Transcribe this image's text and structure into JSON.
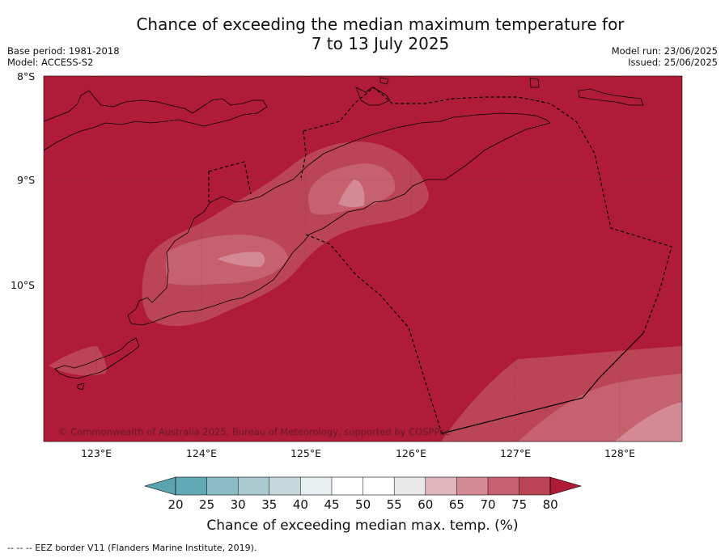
{
  "title_line1": "Chance of exceeding the median maximum temperature for",
  "title_line2": "7 to 13 July 2025",
  "base_period": "Base period: 1981-2018",
  "model": "Model: ACCESS-S2",
  "model_run": "Model run: 23/06/2025",
  "issued": "Issued: 25/06/2025",
  "copyright": "© Commonwealth of Australia 2025, Bureau of Meteorology, supported by COSPPac",
  "lat_labels": [
    "8°S",
    "9°S",
    "10°S"
  ],
  "lon_labels": [
    "123°E",
    "124°E",
    "125°E",
    "126°E",
    "127°E",
    "128°E"
  ],
  "colorbar": {
    "ticks": [
      "20",
      "25",
      "30",
      "35",
      "40",
      "45",
      "50",
      "55",
      "60",
      "65",
      "70",
      "75",
      "80"
    ],
    "colors": [
      "#5aa4b2",
      "#62a9b6",
      "#8bbcc5",
      "#a9c9ce",
      "#c6d8dc",
      "#e6eeef",
      "#ffffff",
      "#ffffff",
      "#e8e8e8",
      "#dfb6bd",
      "#d48a94",
      "#c6616f",
      "#bb4555",
      "#b01c37"
    ],
    "label": "Chance of exceeding median max. temp. (%)"
  },
  "footnote": "--  --  -- EEZ border V11 (Flanders Marine Institute, 2019).",
  "colors": {
    "over_80": "#b01c37",
    "c75_80": "#bb4555",
    "c70_75": "#c6616f",
    "c65_70": "#d48a94",
    "c60_65": "#dfb6bd"
  }
}
